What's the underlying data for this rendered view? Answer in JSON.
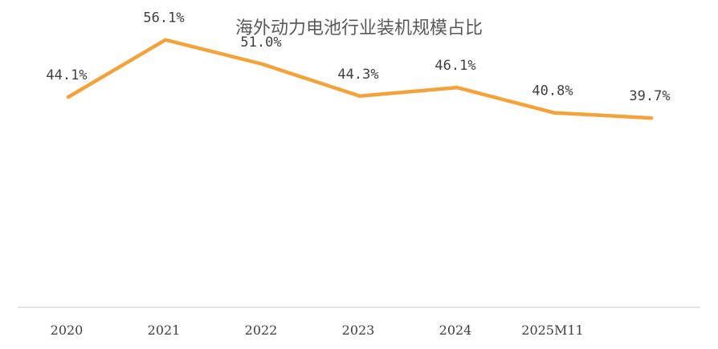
{
  "chart_data": {
    "type": "line",
    "title": "海外动力电池行业装机规模占比",
    "categories": [
      "2020",
      "2021",
      "2022",
      "2023",
      "2024",
      "2025M11",
      ""
    ],
    "series": [
      {
        "values": [
          44.1,
          56.1,
          51.0,
          44.3,
          46.1,
          40.8,
          39.7
        ],
        "labels": [
          "44.1%",
          "56.1%",
          "51.0%",
          "44.3%",
          "46.1%",
          "40.8%",
          "39.7%"
        ]
      }
    ],
    "ylim": [
      0,
      60
    ],
    "grid": false,
    "legend": "none",
    "colors": {
      "line": "#F4A23A",
      "axis": "#D9D9D9"
    }
  }
}
